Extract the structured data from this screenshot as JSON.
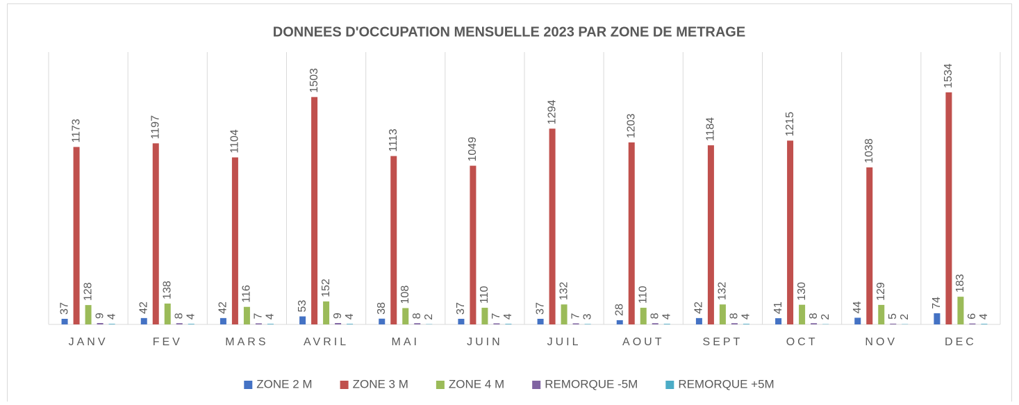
{
  "chart_data": {
    "type": "bar",
    "title": "DONNEES D'OCCUPATION MENSUELLE 2023 PAR ZONE DE METRAGE",
    "categories": [
      "JANV",
      "FEV",
      "MARS",
      "AVRIL",
      "MAI",
      "JUIN",
      "JUIL",
      "AOUT",
      "SEPT",
      "OCT",
      "NOV",
      "DEC"
    ],
    "series": [
      {
        "name": "ZONE 2 M",
        "color": "#4472c4",
        "values": [
          37,
          42,
          42,
          53,
          38,
          37,
          37,
          28,
          42,
          41,
          44,
          74
        ]
      },
      {
        "name": "ZONE 3 M",
        "color": "#c0504d",
        "values": [
          1173,
          1197,
          1104,
          1503,
          1113,
          1049,
          1294,
          1203,
          1184,
          1215,
          1038,
          1534
        ]
      },
      {
        "name": "ZONE 4 M",
        "color": "#9bbb59",
        "values": [
          128,
          138,
          116,
          152,
          108,
          110,
          132,
          110,
          132,
          130,
          129,
          183
        ]
      },
      {
        "name": "REMORQUE -5M",
        "color": "#8064a2",
        "values": [
          9,
          8,
          7,
          9,
          8,
          7,
          7,
          8,
          8,
          8,
          5,
          6
        ]
      },
      {
        "name": "REMORQUE +5M",
        "color": "#4bacc6",
        "values": [
          4,
          4,
          4,
          4,
          2,
          4,
          3,
          4,
          4,
          2,
          2,
          4
        ]
      }
    ],
    "ylim": [
      0,
      1800
    ],
    "legend": "bottom"
  }
}
